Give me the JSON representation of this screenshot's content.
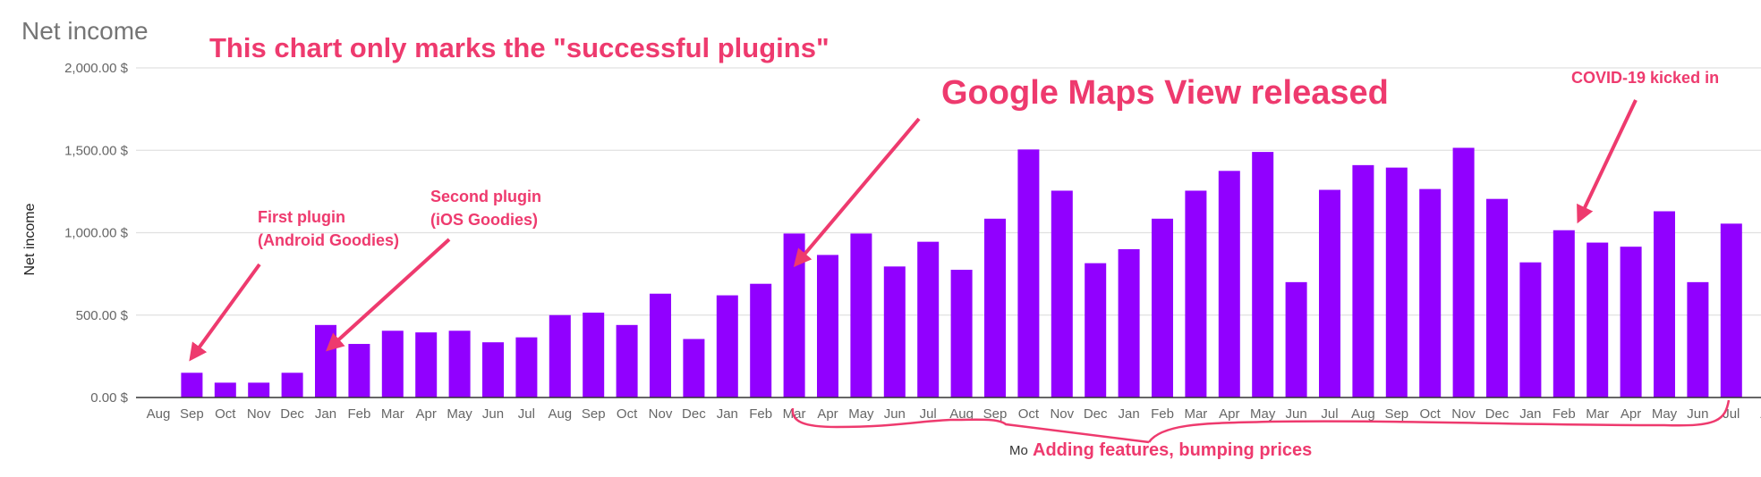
{
  "chart_data": {
    "type": "bar",
    "title": "Net income",
    "ylabel": "Net income",
    "xlabel": "Mo",
    "ylim": [
      0,
      2000
    ],
    "y_ticks": [
      "0.00 $",
      "500.00 $",
      "1,000.00 $",
      "1,500.00 $",
      "2,000.00 $"
    ],
    "y_tick_values": [
      0,
      500,
      1000,
      1500,
      2000
    ],
    "grid": true,
    "legend": "none",
    "bar_color": "#9100ff",
    "categories": [
      "Aug",
      "Sep",
      "Oct",
      "Nov",
      "Dec",
      "Jan",
      "Feb",
      "Mar",
      "Apr",
      "May",
      "Jun",
      "Jul",
      "Aug",
      "Sep",
      "Oct",
      "Nov",
      "Dec",
      "Jan",
      "Feb",
      "Mar",
      "Apr",
      "May",
      "Jun",
      "Jul",
      "Aug",
      "Sep",
      "Oct",
      "Nov",
      "Dec",
      "Jan",
      "Feb",
      "Mar",
      "Apr",
      "May",
      "Jun",
      "Jul",
      "Aug",
      "Sep",
      "Oct",
      "Nov",
      "Dec",
      "Jan",
      "Feb",
      "Mar",
      "Apr",
      "May",
      "Jun",
      "Jul",
      "A"
    ],
    "values": [
      null,
      150,
      90,
      90,
      150,
      440,
      325,
      405,
      395,
      405,
      335,
      365,
      500,
      515,
      440,
      630,
      355,
      620,
      690,
      995,
      865,
      995,
      795,
      945,
      775,
      1085,
      1505,
      1255,
      815,
      900,
      1085,
      1255,
      1375,
      1490,
      700,
      1260,
      1410,
      1395,
      1265,
      1515,
      1205,
      820,
      1015,
      940,
      915,
      1130,
      700,
      1055,
      null
    ]
  },
  "annotations": {
    "header": "This chart only marks the \"successful plugins\"",
    "maps": "Google Maps View released",
    "covid": "COVID-19 kicked in",
    "first_line1": "First plugin",
    "first_line2": "(Android Goodies)",
    "second_line1": "Second plugin",
    "second_line2": "(iOS Goodies)",
    "features": "Adding features, bumping prices"
  },
  "colors": {
    "accent": "#ee3a6e",
    "bar": "#9100ff",
    "grid": "#e0e0e0",
    "axis": "#333333",
    "text": "#666666"
  }
}
